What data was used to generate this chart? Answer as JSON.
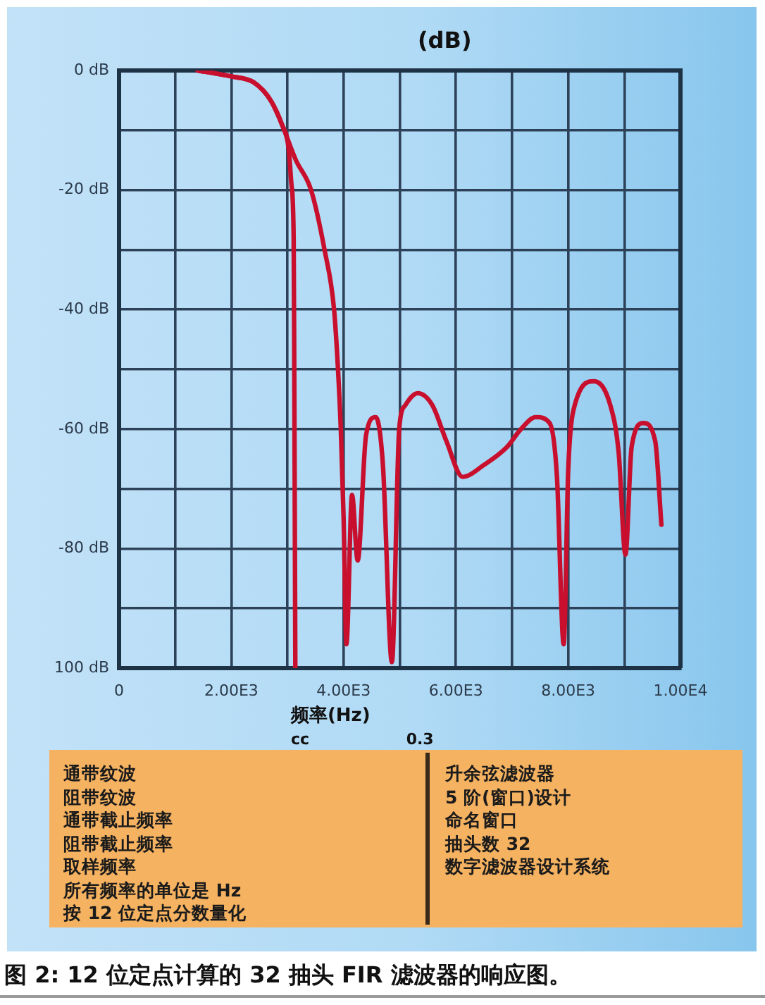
{
  "chart_data": [
    {
      "type": "line",
      "ylabel": "(dB)",
      "xlabel": "频率(Hz)",
      "series": [
        {
          "color": "#c8102e",
          "x": [
            1400,
            2000,
            2400,
            2700,
            2900,
            3020,
            3070,
            3110,
            3120,
            3140
          ],
          "values": [
            0,
            -1,
            -2,
            -5,
            -9,
            -13,
            -19,
            -28,
            -47,
            -100
          ]
        },
        {
          "color": "#c8102e",
          "x": [
            1400,
            2000,
            2400,
            2700,
            2900,
            3150,
            3420,
            3660,
            3830,
            3900,
            3950,
            4000,
            4050,
            4150,
            4250,
            4400,
            4570,
            4700,
            4860,
            4990,
            5100,
            5320,
            5580,
            5830,
            6120,
            6500,
            6910,
            7160,
            7420,
            7670,
            7800,
            7920,
            8000,
            8090,
            8460,
            8750,
            8900,
            9020,
            9130,
            9340,
            9550,
            9660
          ],
          "values": [
            0,
            -1,
            -2,
            -5,
            -9,
            -15,
            -20,
            -30,
            -40,
            -50,
            -60,
            -75,
            -96,
            -71,
            -82,
            -61,
            -58,
            -66,
            -99,
            -60,
            -56,
            -54,
            -56,
            -62,
            -68,
            -66,
            -63,
            -60,
            -58,
            -59,
            -68,
            -96,
            -67,
            -57,
            -52,
            -56,
            -64,
            -81,
            -63,
            -59,
            -62,
            -76
          ]
        }
      ],
      "xlim": [
        0,
        10000
      ],
      "xticks": [
        0,
        {
          "value": 1000,
          "label": null
        },
        {
          "value": 2000,
          "label": "2.00E3"
        },
        {
          "value": 3000,
          "label": null
        },
        {
          "value": 4000,
          "label": "4.00E3"
        },
        {
          "value": 5000,
          "label": null
        },
        {
          "value": 6000,
          "label": "6.00E3"
        },
        {
          "value": 7000,
          "label": null
        },
        {
          "value": 8000,
          "label": "8.00E3"
        },
        {
          "value": 9000,
          "label": null
        },
        {
          "value": 10000,
          "label": "1.00E4"
        }
      ],
      "ylim": [
        -100,
        0
      ],
      "yticks": [
        {
          "value": 0,
          "label": "0 dB"
        },
        {
          "value": -10,
          "label": null
        },
        {
          "value": -20,
          "label": "-20 dB"
        },
        {
          "value": -30,
          "label": null
        },
        {
          "value": -40,
          "label": "-40 dB"
        },
        {
          "value": -50,
          "label": null
        },
        {
          "value": -60,
          "label": "-60 dB"
        },
        {
          "value": -70,
          "label": null
        },
        {
          "value": -80,
          "label": "-80 dB"
        },
        {
          "value": -90,
          "label": null
        },
        {
          "value": -100,
          "label": "100 dB"
        }
      ],
      "grid": true,
      "marker": "none",
      "line_style": "solid",
      "annotations": [
        "cc",
        "0.3",
        "图 2: 12 位定点计算的 32 抽头 FIR 滤波器的响应图。"
      ]
    },
    {
      "type": "other",
      "annotations": [
        "通带纹波",
        "阻带纹波",
        "通带截止频率",
        "阻带截止频率",
        "取样频率",
        "所有频率的单位是 Hz",
        "按 12 位定点分数量化"
      ]
    },
    {
      "type": "other",
      "annotations": [
        "升余弦滤波器",
        "5 阶(窗口)设计",
        "命名窗口",
        "抽头数 32",
        "数字滤波器设计系统"
      ]
    }
  ]
}
